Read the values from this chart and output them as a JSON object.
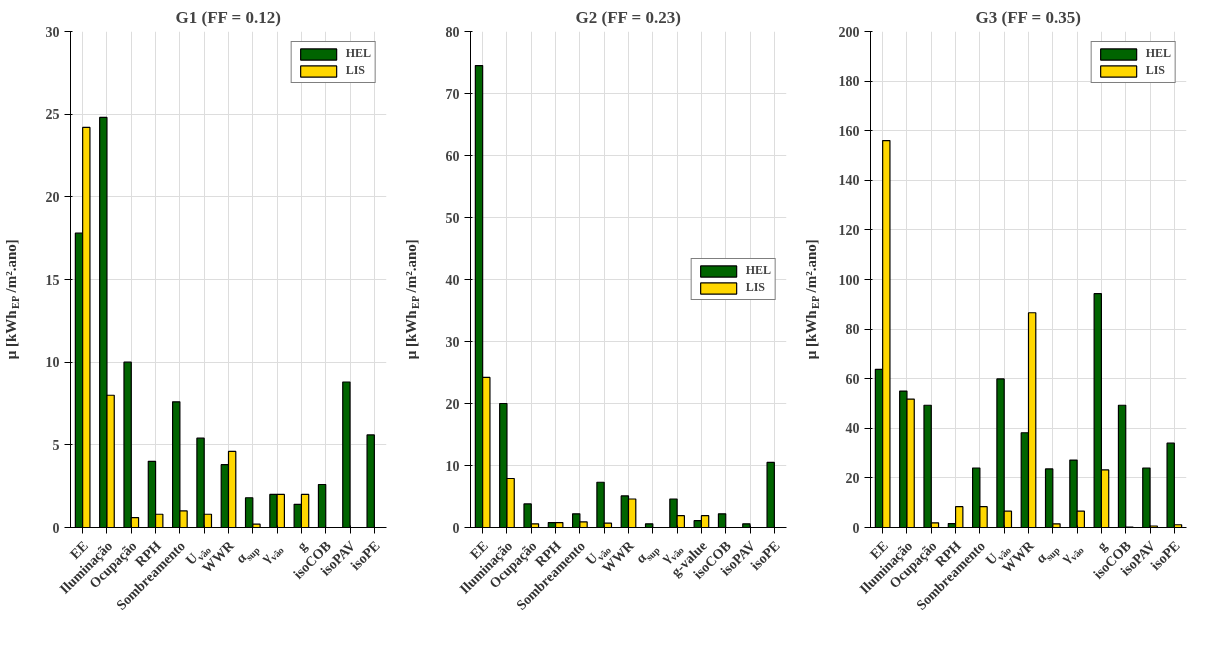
{
  "chart_data": [
    {
      "type": "bar",
      "title": "G1 (FF = 0.12)",
      "ylabel": "μ [kWh$_{EP}$/m².ano]",
      "categories": [
        "EE",
        "Iluminação",
        "Ocupação",
        "RPH",
        "Sombreamento",
        "U$_{vão}$",
        "WWR",
        "α$_{sup}$",
        "γ$_{vão}$",
        "g",
        "isoCOB",
        "isoPAV",
        "isoPE"
      ],
      "series": [
        {
          "name": "HEL",
          "color": "#006400",
          "values": [
            17.8,
            24.8,
            10.0,
            4.0,
            7.6,
            5.4,
            3.8,
            1.8,
            2.0,
            1.4,
            2.6,
            8.8,
            5.6
          ]
        },
        {
          "name": "LIS",
          "color": "#ffd700",
          "values": [
            24.2,
            8.0,
            0.6,
            0.8,
            1.0,
            0.8,
            4.6,
            0.2,
            2.0,
            2.0,
            0,
            0,
            0
          ]
        }
      ],
      "ylim": [
        0,
        30
      ],
      "yticks": [
        0,
        5,
        10,
        15,
        20,
        25,
        30
      ],
      "grid": true,
      "legend": "top right"
    },
    {
      "type": "bar",
      "title": "G2 (FF = 0.23)",
      "ylabel": "μ [kWh$_{EP}$/m².ano]",
      "categories": [
        "EE",
        "Iluminação",
        "Ocupação",
        "RPH",
        "Sombreamento",
        "U$_{vão}$",
        "WWR",
        "α$_{sup}$",
        "γ$_{vão}$",
        "g-value",
        "isoCOB",
        "isoPAV",
        "isoPE"
      ],
      "series": [
        {
          "name": "HEL",
          "color": "#006400",
          "values": [
            74.5,
            20.0,
            3.8,
            0.8,
            2.2,
            7.3,
            5.1,
            0.6,
            4.6,
            1.1,
            2.2,
            0.6,
            10.5
          ]
        },
        {
          "name": "LIS",
          "color": "#ffd700",
          "values": [
            24.2,
            7.9,
            0.6,
            0.8,
            0.9,
            0.7,
            4.6,
            0,
            1.9,
            1.9,
            0,
            0,
            0
          ]
        }
      ],
      "ylim": [
        0,
        80
      ],
      "yticks": [
        0,
        10,
        20,
        30,
        40,
        50,
        60,
        70,
        80
      ],
      "grid": true,
      "legend": "right"
    },
    {
      "type": "bar",
      "title": "G3 (FF = 0.35)",
      "ylabel": "μ [kWh$_{EP}$/m².ano]",
      "categories": [
        "EE",
        "Iluminação",
        "Ocupação",
        "RPH",
        "Sombreamento",
        "U$_{vão}$",
        "WWR",
        "α$_{sup}$",
        "γ$_{vão}$",
        "g",
        "isoCOB",
        "isoPAV",
        "isoPE"
      ],
      "series": [
        {
          "name": "HEL",
          "color": "#006400",
          "values": [
            63.8,
            55.0,
            49.3,
            1.6,
            24.0,
            59.9,
            38.2,
            23.6,
            27.2,
            94.3,
            49.3,
            24.0,
            34.0
          ]
        },
        {
          "name": "LIS",
          "color": "#ffd700",
          "values": [
            156.0,
            51.8,
            1.9,
            8.4,
            8.4,
            6.6,
            86.6,
            1.5,
            6.6,
            23.2,
            0.2,
            0.6,
            1.1
          ]
        }
      ],
      "ylim": [
        0,
        200
      ],
      "yticks": [
        0,
        20,
        40,
        60,
        80,
        100,
        120,
        140,
        160,
        180,
        200
      ],
      "grid": true,
      "legend": "top right"
    }
  ]
}
